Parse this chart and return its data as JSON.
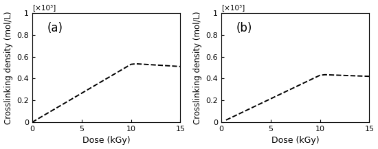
{
  "panel_a": {
    "label": "(a)",
    "x": [
      0,
      10,
      10.5,
      15
    ],
    "y": [
      0,
      0.53,
      0.535,
      0.51
    ]
  },
  "panel_b": {
    "label": "(b)",
    "x": [
      0.5,
      10,
      10.5,
      15
    ],
    "y": [
      0.02,
      0.43,
      0.435,
      0.42
    ]
  },
  "xlim": [
    0,
    15
  ],
  "ylim": [
    0,
    1.0
  ],
  "yticks": [
    0,
    0.2,
    0.4,
    0.6,
    0.8,
    1.0
  ],
  "ytick_labels": [
    "0",
    "0.2",
    "0.4",
    "0.6",
    "0.8",
    "1"
  ],
  "xticks": [
    0,
    5,
    10,
    15
  ],
  "xtick_labels": [
    "0",
    "5",
    "10",
    "15"
  ],
  "xlabel": "Dose (kGy)",
  "ylabel": "Crosslinking density (mol/L)",
  "exp_label": "[×10³]",
  "line_color": "#000000",
  "line_style": "--",
  "line_width": 1.4,
  "bg_color": "#ffffff",
  "figsize": [
    5.5,
    2.17
  ],
  "dpi": 100
}
